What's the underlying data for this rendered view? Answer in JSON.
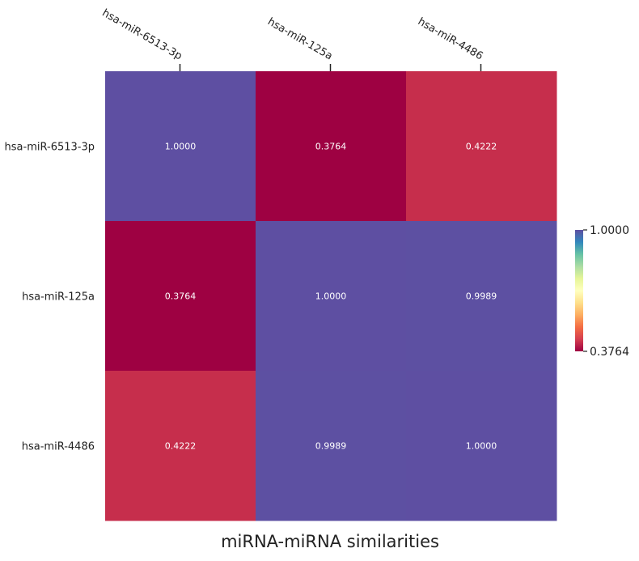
{
  "chart_data": {
    "type": "heatmap",
    "title": "miRNA-miRNA similarities",
    "row_labels": [
      "hsa-miR-6513-3p",
      "hsa-miR-125a",
      "hsa-miR-4486"
    ],
    "col_labels": [
      "hsa-miR-6513-3p",
      "hsa-miR-125a",
      "hsa-miR-4486"
    ],
    "values": [
      [
        1.0,
        0.3764,
        0.4222
      ],
      [
        0.3764,
        1.0,
        0.9989
      ],
      [
        0.4222,
        0.9989,
        1.0
      ]
    ],
    "cell_labels": [
      [
        "1.0000",
        "0.3764",
        "0.4222"
      ],
      [
        "0.3764",
        "1.0000",
        "0.9989"
      ],
      [
        "0.4222",
        "0.9989",
        "1.0000"
      ]
    ],
    "colormap": "Spectral",
    "colorbar": {
      "min": 0.3764,
      "max": 1.0,
      "tick_labels": [
        "1.0000",
        "0.3764"
      ],
      "placement": "right"
    },
    "column_label_position": "top",
    "grid": false
  },
  "colors": {
    "spectral_stops": [
      "#9e0142",
      "#d53e4f",
      "#f46d43",
      "#fdae61",
      "#fee08b",
      "#ffffbf",
      "#e6f598",
      "#abdda4",
      "#66c2a5",
      "#3288bd",
      "#5e4fa2"
    ],
    "cell_text": "#ffffff",
    "label_text": "#222222"
  }
}
